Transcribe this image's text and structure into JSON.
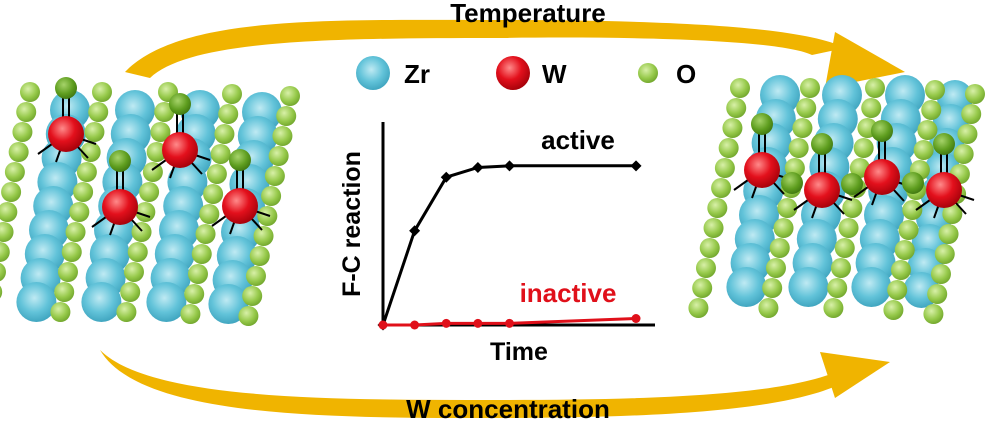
{
  "arrows": {
    "top_label": "Temperature",
    "bottom_label": "W concentration",
    "color": "#f0b400"
  },
  "legend": [
    {
      "symbol": "Zr",
      "color": "#5bc0d6"
    },
    {
      "symbol": "W",
      "color": "#e0101a"
    },
    {
      "symbol": "O",
      "color": "#8cc63f"
    }
  ],
  "atom_colors": {
    "zr": "#62c3d9",
    "w": "#e3101c",
    "o": "#96c94a",
    "o_dark": "#5f9e1f"
  },
  "chart_data": {
    "type": "line",
    "title": "",
    "xlabel": "Time",
    "ylabel": "F-C reaction",
    "x": [
      0,
      1,
      2,
      3,
      4,
      8
    ],
    "series": [
      {
        "name": "active",
        "color": "#000000",
        "marker": "diamond",
        "values": [
          0,
          0.58,
          0.91,
          0.97,
          0.98,
          0.98
        ]
      },
      {
        "name": "inactive",
        "color": "#e0101a",
        "marker": "circle",
        "values": [
          0,
          0,
          0.01,
          0.01,
          0.01,
          0.04
        ]
      }
    ],
    "xlim": [
      0,
      8.6
    ],
    "ylim": [
      0,
      1.25
    ],
    "grid": false,
    "legend": "inline labels"
  }
}
